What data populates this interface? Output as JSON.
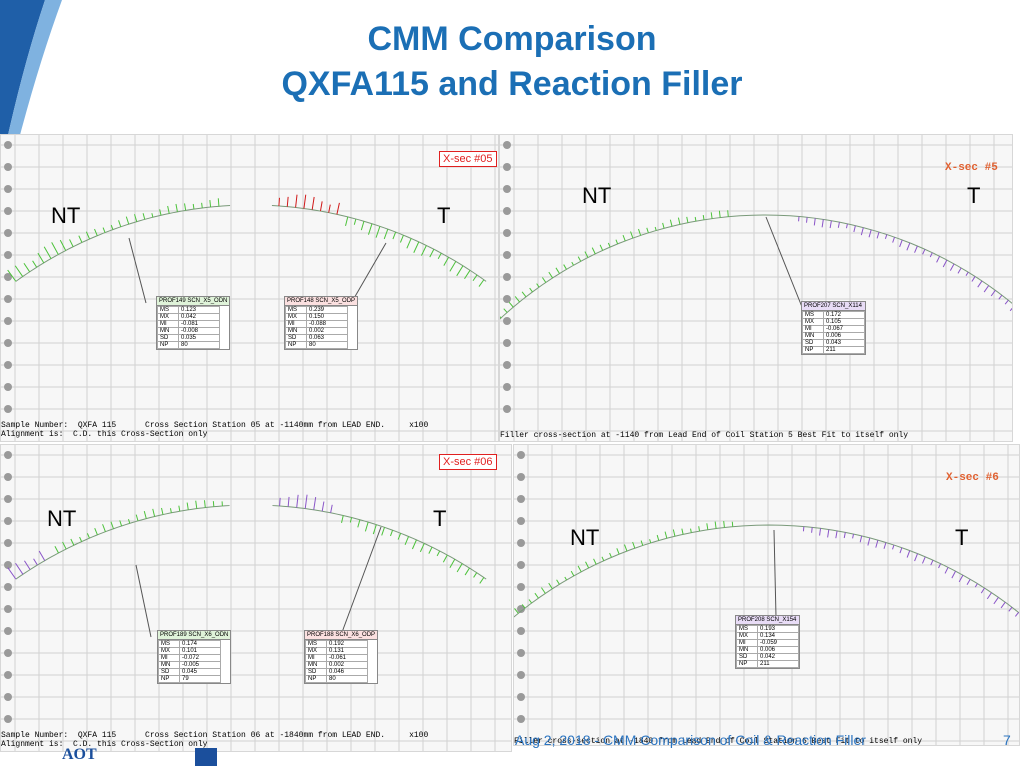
{
  "slide": {
    "title_line1": "CMM Comparison",
    "title_line2": "QXFA115 and Reaction Filler",
    "footer": "Aug 2, 2018 - CMM Comparison of Coil & Reaction Filler",
    "page_number": "7",
    "logo_text": "AOT"
  },
  "colors": {
    "title": "#1b6fb5",
    "green_deviation": "#4cc23a",
    "purple_deviation": "#8a55c8",
    "red_deviation": "#d01818",
    "grid": "#cfcfcf"
  },
  "panels": {
    "p1": {
      "nt": "NT",
      "t": "T",
      "xsec": "X-sec #05",
      "caption1": "Sample Number:  QXFA 115      Cross Section Station 05 at -1140mm from LEAD END.     x100",
      "caption2": "Alignment is:  C.D. this Cross-Section only",
      "stats": [
        {
          "title": "PROF149 SCN_X5_ODN",
          "rows": [
            [
              "MS",
              "0.123"
            ],
            [
              "MX",
              "0.042"
            ],
            [
              "MI",
              "-0.081"
            ],
            [
              "MN",
              "-0.008"
            ],
            [
              "SD",
              "0.035"
            ],
            [
              "NP",
              "80"
            ]
          ]
        },
        {
          "title": "PROF148 SCN_X5_ODP",
          "rows": [
            [
              "MS",
              "0.239"
            ],
            [
              "MX",
              "0.150"
            ],
            [
              "MI",
              "-0.088"
            ],
            [
              "MN",
              "0.002"
            ],
            [
              "SD",
              "0.063"
            ],
            [
              "NP",
              "80"
            ]
          ]
        }
      ]
    },
    "p2": {
      "nt": "NT",
      "t": "T",
      "xsec": "X-sec #5",
      "caption1": "Filler cross-section at -1140 from Lead End of Coil Station 5 Best Fit to itself only",
      "stats": [
        {
          "title": "PROF207 SCN_X114",
          "rows": [
            [
              "MS",
              "0.172"
            ],
            [
              "MX",
              "0.105"
            ],
            [
              "MI",
              "-0.067"
            ],
            [
              "MN",
              "0.006"
            ],
            [
              "SD",
              "0.043"
            ],
            [
              "NP",
              "211"
            ]
          ]
        }
      ]
    },
    "p3": {
      "nt": "NT",
      "t": "T",
      "xsec": "X-sec #06",
      "caption1": "Sample Number:  QXFA 115      Cross Section Station 06 at -1840mm from LEAD END.     x100",
      "caption2": "Alignment is:  C.D. this Cross-Section only",
      "stats": [
        {
          "title": "PROF189 SCN_X6_ODN",
          "rows": [
            [
              "MS",
              "0.174"
            ],
            [
              "MX",
              "0.101"
            ],
            [
              "MI",
              "-0.072"
            ],
            [
              "MN",
              "-0.005"
            ],
            [
              "SD",
              "0.045"
            ],
            [
              "NP",
              "79"
            ]
          ]
        },
        {
          "title": "PROF188 SCN_X6_ODP",
          "rows": [
            [
              "MS",
              "0.192"
            ],
            [
              "MX",
              "0.131"
            ],
            [
              "MI",
              "-0.061"
            ],
            [
              "MN",
              "0.002"
            ],
            [
              "SD",
              "0.046"
            ],
            [
              "NP",
              "80"
            ]
          ]
        }
      ]
    },
    "p4": {
      "nt": "NT",
      "t": "T",
      "xsec": "X-sec #6",
      "caption1": "Filler cross-section at -1840 from Lead End of Coil Station 6 Best Fit to itself only",
      "stats": [
        {
          "title": "PROF208 SCN_X154",
          "rows": [
            [
              "MS",
              "0.193"
            ],
            [
              "MX",
              "0.134"
            ],
            [
              "MI",
              "-0.059"
            ],
            [
              "MN",
              "0.006"
            ],
            [
              "SD",
              "0.042"
            ],
            [
              "NP",
              "211"
            ]
          ]
        }
      ]
    }
  }
}
